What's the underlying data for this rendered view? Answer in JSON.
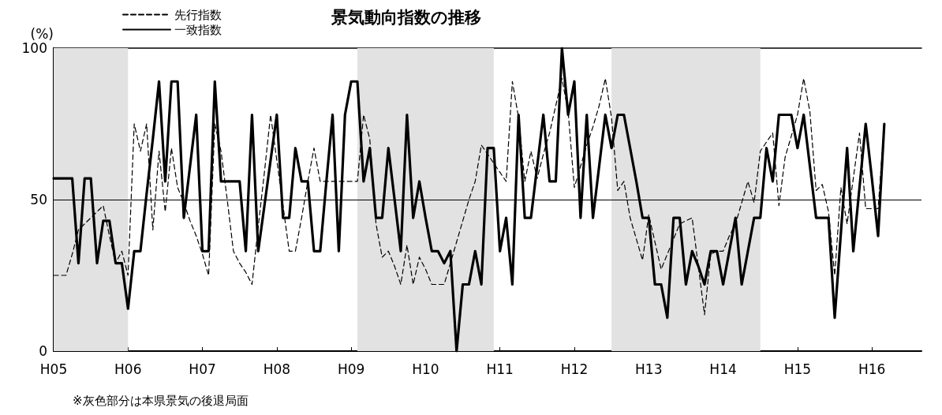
{
  "chart_data": {
    "type": "line",
    "title": "景気動向指数の推移",
    "ylabel": "(%)",
    "annotations": [
      "※灰色部分は本県景気の後退局面"
    ],
    "categories": [
      "H05",
      null,
      null,
      null,
      null,
      null,
      null,
      null,
      null,
      null,
      null,
      null,
      "H06",
      null,
      null,
      null,
      null,
      null,
      null,
      null,
      null,
      null,
      null,
      null,
      "H07",
      null,
      null,
      null,
      null,
      null,
      null,
      null,
      null,
      null,
      null,
      null,
      "H08",
      null,
      null,
      null,
      null,
      null,
      null,
      null,
      null,
      null,
      null,
      null,
      "H09",
      null,
      null,
      null,
      null,
      null,
      null,
      null,
      null,
      null,
      null,
      null,
      "H10",
      null,
      null,
      null,
      null,
      null,
      null,
      null,
      null,
      null,
      null,
      null,
      "H11",
      null,
      null,
      null,
      null,
      null,
      null,
      null,
      null,
      null,
      null,
      null,
      "H12",
      null,
      null,
      null,
      null,
      null,
      null,
      null,
      null,
      null,
      null,
      null,
      "H13",
      null,
      null,
      null,
      null,
      null,
      null,
      null,
      null,
      null,
      null,
      null,
      "H14",
      null,
      null,
      null,
      null,
      null,
      null,
      null,
      null,
      null,
      null,
      null,
      "H15",
      null,
      null,
      null,
      null,
      null,
      null,
      null,
      null,
      null,
      null,
      null,
      "H16",
      null,
      null,
      null,
      null,
      null,
      null,
      null,
      null
    ],
    "ylim": [
      0,
      100
    ],
    "yticks": [
      0,
      50,
      100
    ],
    "grid": false,
    "legend": "top left",
    "marker": "none",
    "ref_lines": [
      {
        "axis": "y",
        "value": 50,
        "color": "#000000",
        "line_style": "solid"
      }
    ],
    "bands": [
      {
        "axis": "x",
        "from": "H05",
        "to": "H06",
        "color": "#e2e2e2"
      }
    ],
    "series": [
      {
        "name": "先行指数",
        "color": "#000000",
        "line_style": "dashed",
        "values": [
          25,
          25,
          25,
          32,
          40,
          42,
          44,
          46,
          48,
          38,
          29,
          33,
          25,
          75,
          66,
          75,
          40,
          66,
          46,
          67,
          54,
          49,
          43,
          38,
          32,
          25,
          75,
          66,
          50,
          33,
          29,
          26,
          22,
          41,
          59,
          78,
          63,
          48,
          33,
          33,
          44,
          56,
          67,
          56,
          56,
          56,
          56,
          56,
          56,
          56,
          78,
          70,
          42,
          31,
          33,
          28,
          22,
          35,
          22,
          31,
          27,
          22,
          22,
          22,
          29,
          36,
          43,
          50,
          56,
          68,
          65,
          62,
          59,
          56,
          89,
          77,
          56,
          66,
          57,
          65,
          72,
          81,
          90,
          79,
          54,
          61,
          68,
          74,
          81,
          90,
          77,
          53,
          56,
          44,
          37,
          30,
          45,
          36,
          27,
          32,
          37,
          42,
          43,
          44,
          28,
          12,
          32,
          33,
          33,
          38,
          42,
          49,
          56,
          49,
          66,
          69,
          72,
          48,
          64,
          71,
          78,
          90,
          79,
          53,
          55,
          46,
          25,
          54,
          42,
          57,
          72,
          47,
          47,
          47,
          75,
          null,
          null,
          null,
          null,
          null,
          null
        ]
      },
      {
        "name": "一致指数",
        "color": "#000000",
        "line_style": "solid",
        "values": [
          57,
          57,
          57,
          57,
          29,
          57,
          57,
          29,
          43,
          43,
          29,
          29,
          14,
          33,
          33,
          52,
          70,
          89,
          56,
          89,
          89,
          44,
          61,
          78,
          33,
          33,
          89,
          56,
          56,
          56,
          56,
          33,
          78,
          33,
          48,
          63,
          78,
          44,
          44,
          67,
          56,
          56,
          33,
          33,
          56,
          78,
          33,
          78,
          89,
          89,
          56,
          67,
          44,
          44,
          67,
          50,
          33,
          78,
          44,
          56,
          44,
          33,
          33,
          29,
          33,
          0,
          22,
          22,
          33,
          22,
          67,
          67,
          33,
          44,
          22,
          78,
          44,
          44,
          61,
          78,
          56,
          56,
          100,
          78,
          89,
          44,
          78,
          44,
          61,
          78,
          67,
          78,
          78,
          67,
          56,
          44,
          44,
          22,
          22,
          11,
          44,
          44,
          22,
          33,
          28,
          22,
          33,
          33,
          22,
          33,
          44,
          22,
          33,
          44,
          44,
          67,
          56,
          78,
          78,
          78,
          67,
          78,
          61,
          44,
          44,
          44,
          11,
          39,
          67,
          33,
          54,
          75,
          57,
          38,
          75,
          null,
          null,
          null,
          null,
          null,
          null
        ]
      }
    ]
  }
}
